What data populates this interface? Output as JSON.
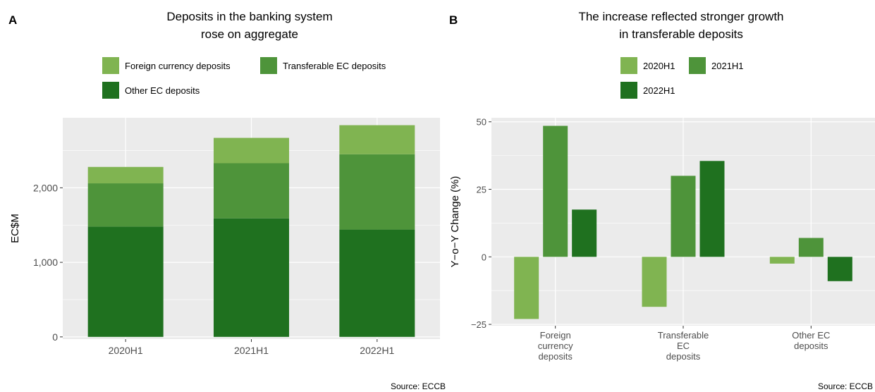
{
  "panels": [
    {
      "letter": "A",
      "title_line1": "Deposits in the banking system",
      "title_line2": "rose on aggregate",
      "source": "Source: ECCB"
    },
    {
      "letter": "B",
      "title_line1": "The increase reflected stronger growth",
      "title_line2": "in transferable deposits",
      "source": "Source: ECCB"
    }
  ],
  "colors": {
    "light_green": "#80b451",
    "mid_green": "#4e943a",
    "dark_green": "#1f711f",
    "panel_bg": "#ebebeb",
    "grid": "#ffffff"
  },
  "chart_data": [
    {
      "type": "bar",
      "stacked": true,
      "title": "Deposits in the banking system rose on aggregate",
      "categories": [
        "2020H1",
        "2021H1",
        "2022H1"
      ],
      "series": [
        {
          "name": "Other EC deposits",
          "values": [
            1480,
            1590,
            1440
          ],
          "color": "#1f711f"
        },
        {
          "name": "Transferable EC deposits",
          "values": [
            580,
            740,
            1010
          ],
          "color": "#4e943a"
        },
        {
          "name": "Foreign currency deposits",
          "values": [
            220,
            340,
            390
          ],
          "color": "#80b451"
        }
      ],
      "legend_order": [
        "Foreign currency deposits",
        "Transferable EC deposits",
        "Other EC deposits"
      ],
      "xlabel": "",
      "ylabel": "EC$M",
      "ylim": [
        -30,
        2940
      ],
      "yticks": [
        0,
        1000,
        2000
      ],
      "ytick_labels": [
        "0",
        "1,000",
        "2,000"
      ],
      "grid": true,
      "legend_position": "top"
    },
    {
      "type": "bar",
      "grouped": true,
      "title": "The increase reflected stronger growth in transferable deposits",
      "categories": [
        "Foreign currency deposits",
        "Transferable EC deposits",
        "Other EC deposits"
      ],
      "category_label_lines": [
        [
          "Foreign",
          "currency",
          "deposits"
        ],
        [
          "Transferable",
          "EC",
          "deposits"
        ],
        [
          "Other EC",
          "deposits"
        ]
      ],
      "series": [
        {
          "name": "2020H1",
          "values": [
            -23,
            -18.5,
            -2.5
          ],
          "color": "#80b451"
        },
        {
          "name": "2021H1",
          "values": [
            48.5,
            30,
            7
          ],
          "color": "#4e943a"
        },
        {
          "name": "2022H1",
          "values": [
            17.5,
            35.5,
            -9
          ],
          "color": "#1f711f"
        }
      ],
      "xlabel": "",
      "ylabel": "Y−o−Y Change (%)",
      "ylim": [
        -25.5,
        51.5
      ],
      "yticks": [
        -25,
        0,
        25,
        50
      ],
      "ytick_labels": [
        "−25",
        "0",
        "25",
        "50"
      ],
      "grid": true,
      "legend_position": "top"
    }
  ]
}
